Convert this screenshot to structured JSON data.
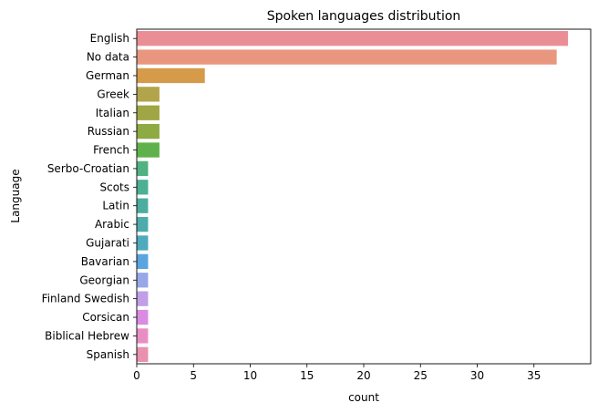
{
  "chart_data": {
    "type": "bar",
    "orientation": "horizontal",
    "title": "Spoken languages distribution",
    "xlabel": "count",
    "ylabel": "Language",
    "xlim": [
      0,
      40
    ],
    "xticks": [
      0,
      5,
      10,
      15,
      20,
      25,
      30,
      35
    ],
    "grid": false,
    "legend": false,
    "categories": [
      "English",
      "No data",
      "German",
      "Greek",
      "Italian",
      "Russian",
      "French",
      "Serbo-Croatian",
      "Scots",
      "Latin",
      "Arabic",
      "Gujarati",
      "Bavarian",
      "Georgian",
      "Finland Swedish",
      "Corsican",
      "Biblical Hebrew",
      "Spanish"
    ],
    "values": [
      38,
      37,
      6,
      2,
      2,
      2,
      2,
      1,
      1,
      1,
      1,
      1,
      1,
      1,
      1,
      1,
      1,
      1
    ],
    "colors": [
      "#ea8e96",
      "#e9967e",
      "#d69b4a",
      "#b2a44a",
      "#a0a643",
      "#8eaa42",
      "#5fb24b",
      "#4fb280",
      "#4daf93",
      "#4bad9f",
      "#4dabac",
      "#4faabe",
      "#5aa4e0",
      "#97a7e8",
      "#c09fe6",
      "#da8be2",
      "#e98ec4",
      "#e991b0"
    ]
  }
}
